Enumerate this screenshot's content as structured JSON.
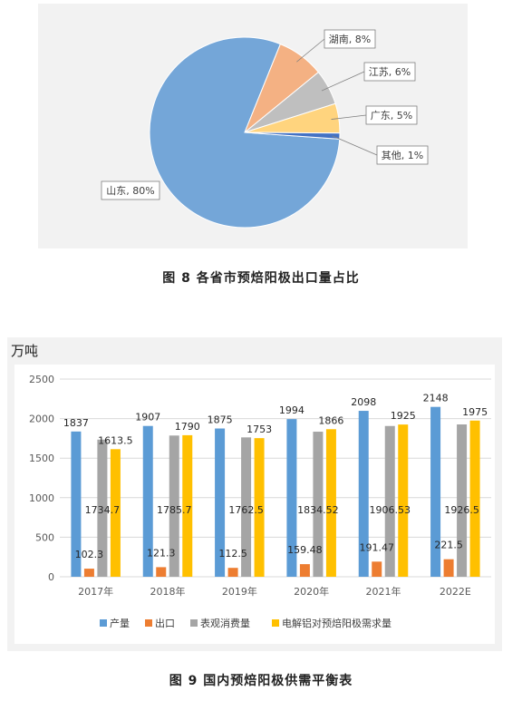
{
  "figures": [
    {
      "caption": "图 8 各省市预焙阳极出口量占比"
    },
    {
      "caption": "图 9  国内预焙阳极供需平衡表"
    }
  ],
  "colors": {
    "blue": "#5b9bd5",
    "orange": "#ed7d31",
    "gray": "#a5a5a5",
    "yellow": "#ffc000",
    "salmon": "#f4b183",
    "light_orange": "#ffd47e",
    "pie_blue": "#74a6d8"
  },
  "chart_data": [
    {
      "type": "pie",
      "title": "",
      "slices": [
        {
          "label": "山东, 80%",
          "name": "山东",
          "value": 80,
          "color": "#74a6d8"
        },
        {
          "label": "湖南, 8%",
          "name": "湖南",
          "value": 8,
          "color": "#f4b183"
        },
        {
          "label": "江苏, 6%",
          "name": "江苏",
          "value": 6,
          "color": "#bfbfbf"
        },
        {
          "label": "广东, 5%",
          "name": "广东",
          "value": 5,
          "color": "#ffd47e"
        },
        {
          "label": "其他, 1%",
          "name": "其他",
          "value": 1,
          "color": "#4472c4"
        }
      ]
    },
    {
      "type": "bar",
      "title": "",
      "unit_label": "万吨",
      "categories": [
        "2017年",
        "2018年",
        "2019年",
        "2020年",
        "2021年",
        "2022E"
      ],
      "ylim": [
        0,
        2500
      ],
      "yticks": [
        "0",
        "500",
        "1000",
        "1500",
        "2000",
        "2500"
      ],
      "grid": true,
      "legend_position": "bottom",
      "series": [
        {
          "name": "产量",
          "color": "#5b9bd5",
          "values": [
            1837,
            1907,
            1875,
            1994,
            2098,
            2148
          ],
          "labels": [
            "1837",
            "1907",
            "1875",
            "1994",
            "2098",
            "2148"
          ]
        },
        {
          "name": "出口",
          "color": "#ed7d31",
          "values": [
            102.3,
            121.3,
            112.5,
            159.48,
            191.47,
            221.5
          ],
          "labels": [
            "102.3",
            "121.3",
            "112.5",
            "159.48",
            "191.47",
            "221.5"
          ]
        },
        {
          "name": "表观消费量",
          "color": "#a5a5a5",
          "values": [
            1734.7,
            1785.7,
            1762.5,
            1834.52,
            1906.53,
            1926.5
          ],
          "labels": [
            "1734.7",
            "1785.7",
            "1762.5",
            "1834.52",
            "1906.53",
            "1926.5"
          ]
        },
        {
          "name": "电解铝对预焙阳极需求量",
          "color": "#ffc000",
          "values": [
            1613.5,
            1790,
            1753,
            1866,
            1925,
            1975
          ],
          "labels": [
            "1613.5",
            "1790",
            "1753",
            "1866",
            "1925",
            "1975"
          ]
        }
      ]
    }
  ]
}
